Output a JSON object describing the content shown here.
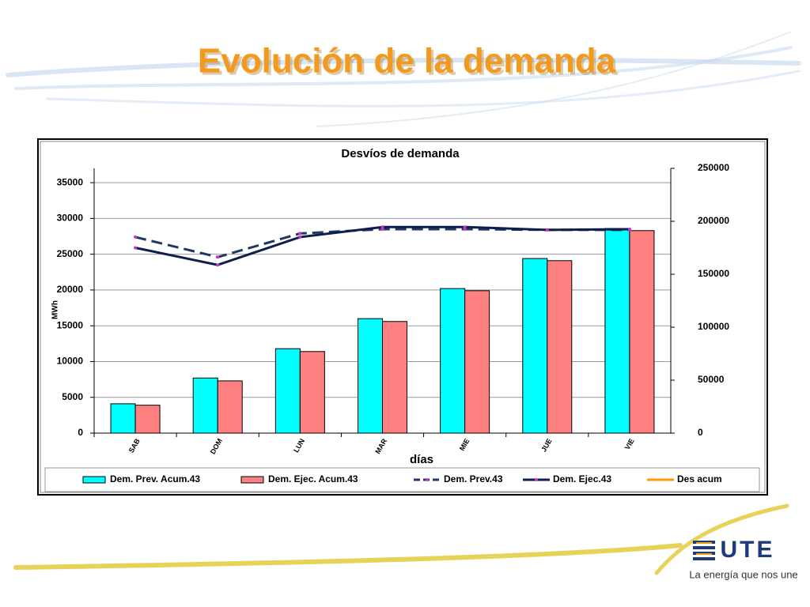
{
  "title": "Evolución de la demanda",
  "logo": {
    "name": "UTE",
    "tagline": "La energía que nos une"
  },
  "chart_data": {
    "type": "combo",
    "title": "Desvíos de demanda",
    "x_label": "días",
    "y_label": "MWh",
    "categories": [
      "SAB",
      "DOM",
      "LUN",
      "MAR",
      "MIE",
      "JUE",
      "VIE"
    ],
    "series": [
      {
        "name": "Dem. Prev. Acum.43",
        "type": "bar",
        "color": "#00ffff",
        "values": [
          4100,
          7700,
          11800,
          16000,
          20200,
          24400,
          28600
        ]
      },
      {
        "name": "Dem. Ejec. Acum.43",
        "type": "bar",
        "color": "#ff8080",
        "values": [
          3900,
          7300,
          11400,
          15600,
          19900,
          24100,
          28300
        ]
      },
      {
        "name": "Dem. Prev.43",
        "type": "line",
        "dashed": true,
        "color": "#1f3864",
        "marker_color": "#cc33cc",
        "values": [
          27400,
          24600,
          27900,
          28500,
          28500,
          28400,
          28400
        ]
      },
      {
        "name": "Dem. Ejec.43",
        "type": "line",
        "dashed": false,
        "color": "#0d1f4a",
        "marker_color": "#cc33cc",
        "values": [
          25900,
          23500,
          27400,
          28800,
          28800,
          28400,
          28500
        ]
      },
      {
        "name": "Des acum",
        "type": "line",
        "dashed": false,
        "color": "#ff9900",
        "axis": "y2",
        "values": [
          null,
          null,
          null,
          null,
          null,
          null,
          null
        ]
      }
    ],
    "ylim": [
      0,
      37000
    ],
    "yticks": [
      0,
      5000,
      10000,
      15000,
      20000,
      25000,
      30000,
      35000
    ],
    "y2lim": [
      0,
      250000
    ],
    "y2ticks": [
      0,
      50000,
      100000,
      150000,
      200000,
      250000
    ],
    "grid": true,
    "legend": "bottom"
  }
}
